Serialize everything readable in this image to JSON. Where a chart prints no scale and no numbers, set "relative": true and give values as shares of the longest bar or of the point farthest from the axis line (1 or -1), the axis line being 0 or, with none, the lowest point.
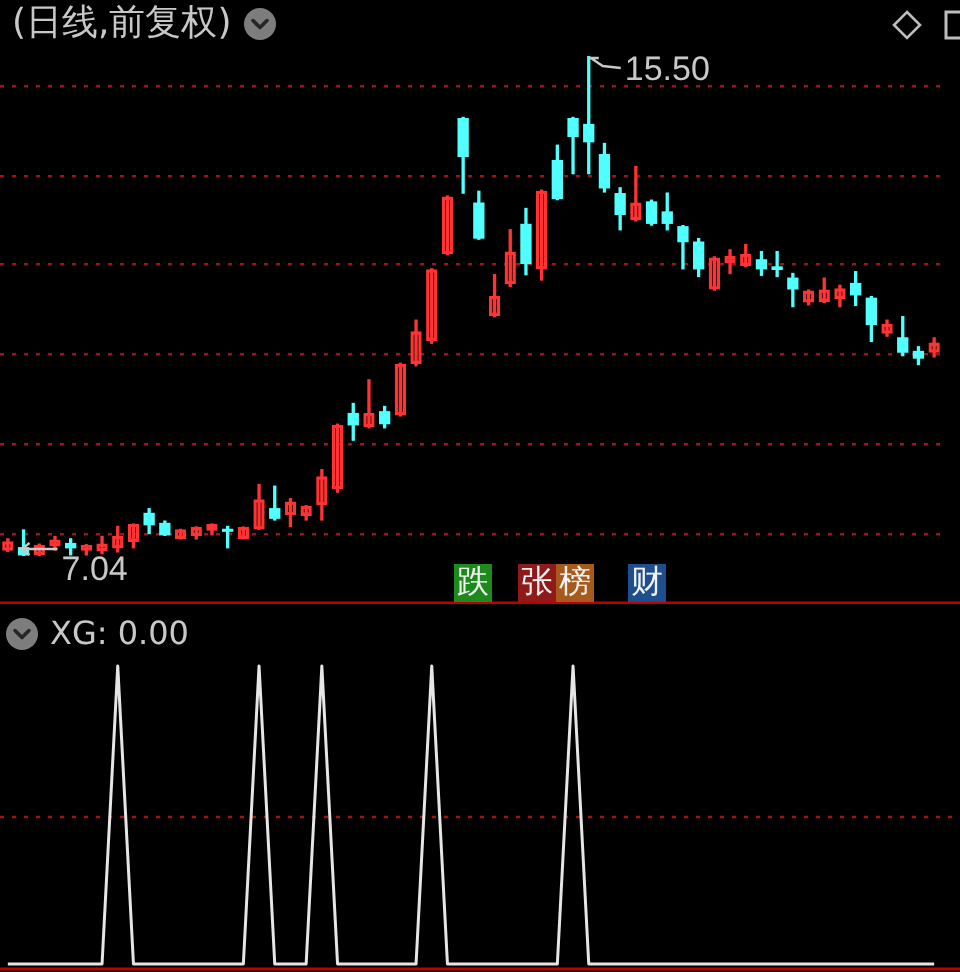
{
  "chart_data": [
    {
      "type": "candlestick",
      "title": "(日线,前复权)",
      "categories": [
        null,
        null,
        null,
        null,
        null,
        null,
        null,
        null,
        null,
        null,
        null,
        null,
        null,
        null,
        null,
        null,
        null,
        null,
        null,
        null,
        null,
        null,
        null,
        null,
        null,
        null,
        null,
        null,
        null,
        null,
        null,
        null,
        null,
        null,
        null,
        null,
        null,
        null,
        null,
        null,
        null,
        null,
        null,
        null,
        null,
        null,
        null,
        null,
        null,
        null,
        null,
        null,
        null,
        null,
        null,
        null,
        null,
        null,
        null,
        null
      ],
      "ohlc": [
        [
          7.14,
          7.33,
          7.12,
          7.28
        ],
        [
          7.18,
          7.48,
          7.04,
          7.06
        ],
        [
          7.07,
          7.24,
          7.05,
          7.22
        ],
        [
          7.21,
          7.37,
          7.14,
          7.31
        ],
        [
          7.25,
          7.33,
          7.06,
          7.18
        ],
        [
          7.14,
          7.23,
          7.06,
          7.22
        ],
        [
          7.13,
          7.37,
          7.08,
          7.24
        ],
        [
          7.18,
          7.54,
          7.11,
          7.37
        ],
        [
          7.29,
          7.58,
          7.18,
          7.57
        ],
        [
          7.76,
          7.84,
          7.42,
          7.57
        ],
        [
          7.59,
          7.63,
          7.39,
          7.4
        ],
        [
          7.34,
          7.49,
          7.33,
          7.48
        ],
        [
          7.39,
          7.53,
          7.33,
          7.52
        ],
        [
          7.48,
          7.58,
          7.4,
          7.57
        ],
        [
          7.49,
          7.54,
          7.18,
          7.46
        ],
        [
          7.34,
          7.53,
          7.33,
          7.52
        ],
        [
          7.5,
          8.25,
          7.49,
          7.99
        ],
        [
          7.84,
          8.22,
          7.65,
          7.68
        ],
        [
          7.74,
          8.01,
          7.54,
          7.95
        ],
        [
          7.73,
          7.89,
          7.65,
          7.88
        ],
        [
          7.91,
          8.5,
          7.65,
          8.38
        ],
        [
          8.18,
          9.27,
          8.12,
          9.25
        ],
        [
          9.45,
          9.62,
          9.0,
          9.26
        ],
        [
          9.23,
          10.02,
          9.21,
          9.45
        ],
        [
          9.48,
          9.57,
          9.21,
          9.28
        ],
        [
          9.43,
          10.3,
          9.41,
          10.28
        ],
        [
          10.3,
          11.03,
          10.26,
          10.83
        ],
        [
          10.69,
          11.9,
          10.64,
          11.88
        ],
        [
          12.16,
          13.13,
          12.14,
          13.11
        ],
        [
          14.44,
          14.46,
          13.18,
          13.8
        ],
        [
          13.01,
          13.21,
          12.4,
          12.42
        ],
        [
          11.11,
          11.8,
          11.09,
          11.43
        ],
        [
          11.65,
          12.56,
          11.6,
          12.18
        ],
        [
          12.65,
          12.92,
          11.8,
          11.99
        ],
        [
          11.9,
          13.23,
          11.71,
          13.21
        ],
        [
          13.73,
          13.99,
          13.07,
          13.09
        ],
        [
          14.44,
          14.46,
          13.51,
          14.14
        ],
        [
          14.34,
          15.5,
          13.51,
          14.05
        ],
        [
          13.83,
          14.02,
          13.2,
          13.27
        ],
        [
          13.17,
          13.27,
          12.56,
          12.82
        ],
        [
          12.73,
          13.63,
          12.71,
          13.01
        ],
        [
          13.03,
          13.06,
          12.64,
          12.67
        ],
        [
          12.86,
          13.18,
          12.56,
          12.67
        ],
        [
          12.61,
          12.63,
          11.9,
          12.36
        ],
        [
          12.35,
          12.41,
          11.77,
          11.9
        ],
        [
          11.56,
          12.1,
          11.54,
          12.08
        ],
        [
          12.01,
          12.22,
          11.82,
          12.11
        ],
        [
          11.96,
          12.31,
          11.94,
          12.14
        ],
        [
          12.05,
          12.19,
          11.79,
          11.9
        ],
        [
          11.93,
          12.19,
          11.77,
          11.89
        ],
        [
          11.74,
          11.82,
          11.26,
          11.56
        ],
        [
          11.34,
          11.54,
          11.29,
          11.52
        ],
        [
          11.35,
          11.74,
          11.33,
          11.54
        ],
        [
          11.4,
          11.62,
          11.26,
          11.56
        ],
        [
          11.65,
          11.85,
          11.28,
          11.46
        ],
        [
          11.4,
          11.43,
          10.67,
          10.96
        ],
        [
          10.81,
          11.03,
          10.76,
          10.96
        ],
        [
          10.73,
          11.09,
          10.43,
          10.49
        ],
        [
          10.5,
          10.58,
          10.28,
          10.39
        ],
        [
          10.49,
          10.73,
          10.41,
          10.64
        ]
      ],
      "colors": [
        "#ff3333",
        "#52ffff",
        "#ff3333",
        "#ff3333",
        "#52ffff",
        "#ff3333",
        "#ff3333",
        "#ff3333",
        "#ff3333",
        "#52ffff",
        "#52ffff",
        "#ff3333",
        "#ff3333",
        "#ff3333",
        "#52ffff",
        "#ff3333",
        "#ff3333",
        "#52ffff",
        "#ff3333",
        "#ff3333",
        "#ff3333",
        "#ff3333",
        "#52ffff",
        "#ff3333",
        "#52ffff",
        "#ff3333",
        "#ff3333",
        "#ff3333",
        "#ff3333",
        "#52ffff",
        "#52ffff",
        "#ff3333",
        "#ff3333",
        "#52ffff",
        "#ff3333",
        "#52ffff",
        "#52ffff",
        "#52ffff",
        "#52ffff",
        "#52ffff",
        "#ff3333",
        "#52ffff",
        "#52ffff",
        "#52ffff",
        "#52ffff",
        "#ff3333",
        "#ff3333",
        "#ff3333",
        "#52ffff",
        "#52ffff",
        "#52ffff",
        "#ff3333",
        "#ff3333",
        "#ff3333",
        "#52ffff",
        "#52ffff",
        "#ff3333",
        "#52ffff",
        "#52ffff",
        "#ff3333"
      ],
      "grid": "y",
      "yticks": [
        {
          "value": 14.99,
          "label": null
        },
        {
          "value": 13.47,
          "label": null
        },
        {
          "value": 11.98,
          "label": null
        },
        {
          "value": 10.46,
          "label": null
        },
        {
          "value": 8.93,
          "label": null
        },
        {
          "value": 7.41,
          "label": null
        }
      ],
      "annotations": [
        "15.50",
        {
          "text": "7.04",
          "y": 7.04
        },
        "跌",
        "张榜",
        "财"
      ]
    },
    {
      "type": "line",
      "title": "XG: 0.00",
      "relative": true,
      "categories": [
        null,
        null,
        null,
        null,
        null,
        null,
        null,
        null,
        null,
        null,
        null,
        null,
        null,
        null,
        null,
        null,
        null,
        null,
        null,
        null,
        null,
        null,
        null,
        null,
        null,
        null,
        null,
        null,
        null,
        null,
        null,
        null,
        null,
        null,
        null,
        null,
        null,
        null,
        null,
        null,
        null,
        null,
        null,
        null,
        null,
        null,
        null,
        null,
        null,
        null,
        null,
        null,
        null,
        null,
        null,
        null,
        null,
        null,
        null,
        null
      ],
      "values": [
        0,
        0,
        0,
        0,
        0,
        0,
        0,
        1,
        0,
        0,
        0,
        0,
        0,
        0,
        0,
        0,
        1,
        0,
        0,
        0,
        1,
        0,
        0,
        0,
        0,
        0,
        0,
        1,
        0,
        0,
        0,
        0,
        0,
        0,
        0,
        0,
        1,
        0,
        0,
        0,
        0,
        0,
        0,
        0,
        0,
        0,
        0,
        0,
        0,
        0,
        0,
        0,
        0,
        0,
        0,
        0,
        0,
        0,
        0,
        0
      ],
      "color": "#e6e6e6",
      "ref_lines": [
        {
          "axis": "y",
          "value": 0.5,
          "color": "#a01414",
          "line_style": "dotted"
        }
      ]
    }
  ]
}
